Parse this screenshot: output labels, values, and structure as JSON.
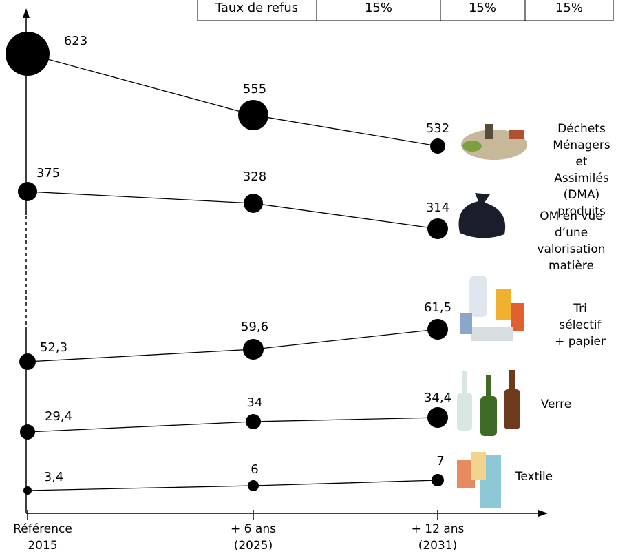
{
  "chart_data": {
    "type": "bubble-line",
    "table": {
      "label": "Taux de refus",
      "cells": [
        "15%",
        "15%",
        "15%"
      ]
    },
    "categories": [
      "Référence\n2015",
      "+ 6 ans\n(2025)",
      "+ 12 ans\n(2031)"
    ],
    "series": [
      {
        "name": "Déchets\nMénagers\net Assimilés\n(DMA) produits",
        "color": "#000000",
        "values": [
          623,
          555,
          532
        ]
      },
      {
        "name": "OM en vue d’une\nvalorisation\nmatière",
        "color": "#000000",
        "values": [
          375,
          328,
          314
        ]
      },
      {
        "name": "Tri sélectif\n+ papier",
        "color": "#000000",
        "values": [
          52.3,
          59.6,
          61.5
        ],
        "value_labels": [
          "52,3",
          "59,6",
          "61,5"
        ]
      },
      {
        "name": "Verre",
        "color": "#000000",
        "values": [
          29.4,
          34,
          34.4
        ],
        "value_labels": [
          "29,4",
          "34",
          "34,4"
        ]
      },
      {
        "name": "Textile",
        "color": "#000000",
        "values": [
          3.4,
          6,
          7
        ],
        "value_labels": [
          "3,4",
          "6",
          "7"
        ]
      }
    ]
  }
}
